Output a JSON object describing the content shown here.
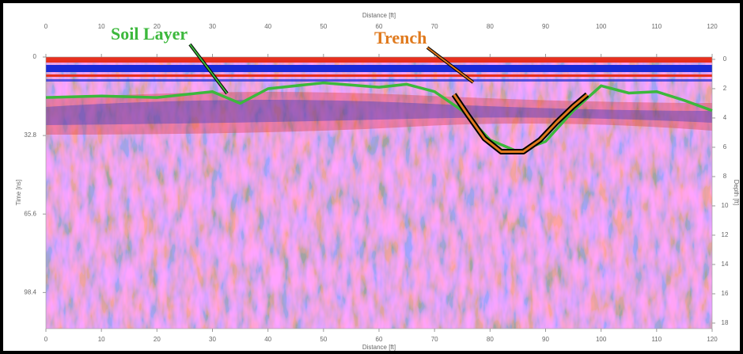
{
  "chart_data": {
    "type": "radargram",
    "x_label": "Distance [ft]",
    "y_label": "Time [ns]",
    "y2_label": "Depth [ft]",
    "xlim": [
      0,
      120
    ],
    "xticks": [
      0,
      10,
      20,
      30,
      40,
      50,
      60,
      70,
      80,
      90,
      100,
      110,
      120
    ],
    "ylim": [
      0,
      113.5
    ],
    "yticks": [
      0,
      32.8,
      65.6,
      98.4
    ],
    "y2lim": [
      -0.16,
      18.38
    ],
    "y2ticks": [
      0,
      2,
      4,
      6,
      8,
      10,
      12,
      14,
      16,
      18
    ],
    "annotations": [
      {
        "text": "Soil Layer",
        "color": "#3cb83c"
      },
      {
        "text": "Trench",
        "color": "#e07a1e"
      }
    ],
    "series": [
      {
        "name": "Soil Layer",
        "color": "#3cb83c",
        "axis": "y2",
        "x": [
          0,
          10,
          20,
          30,
          35,
          40,
          50,
          60,
          65,
          70,
          75,
          80,
          85,
          90,
          95,
          100,
          105,
          110,
          115,
          120
        ],
        "values": [
          2.6,
          2.5,
          2.6,
          2.2,
          3.0,
          2.0,
          1.6,
          1.9,
          1.7,
          2.2,
          3.5,
          5.5,
          6.3,
          5.6,
          3.5,
          1.8,
          2.3,
          2.2,
          2.8,
          3.5
        ]
      },
      {
        "name": "Trench",
        "color": "#e07a1e",
        "axis": "y2",
        "x": [
          73.5,
          76,
          79,
          82,
          86,
          89,
          92,
          95,
          97.5
        ],
        "values": [
          2.4,
          3.8,
          5.4,
          6.3,
          6.3,
          5.5,
          4.3,
          3.2,
          2.4
        ]
      }
    ]
  }
}
